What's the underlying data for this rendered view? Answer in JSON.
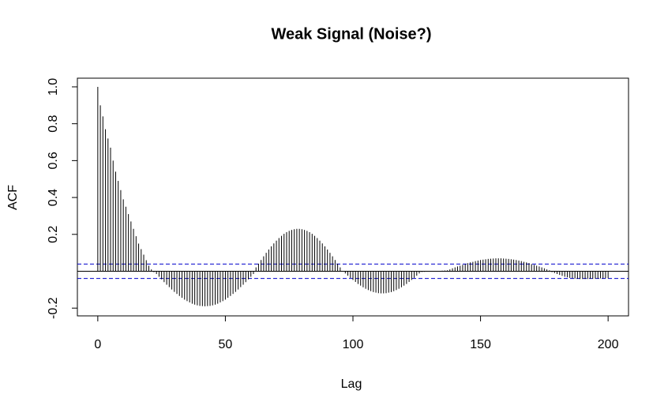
{
  "chart_data": {
    "type": "acf",
    "title": "Weak Signal (Noise?)",
    "x_label": "Lag",
    "y_label": "ACF",
    "x": [
      0,
      1,
      2,
      3,
      4,
      5,
      6,
      7,
      8,
      9,
      10,
      11,
      12,
      13,
      14,
      15,
      16,
      17,
      18,
      19,
      20,
      21,
      22,
      23,
      24,
      25,
      26,
      27,
      28,
      29,
      30,
      31,
      32,
      33,
      34,
      35,
      36,
      37,
      38,
      39,
      40,
      41,
      42,
      43,
      44,
      45,
      46,
      47,
      48,
      49,
      50,
      51,
      52,
      53,
      54,
      55,
      56,
      57,
      58,
      59,
      60,
      61,
      62,
      63,
      64,
      65,
      66,
      67,
      68,
      69,
      70,
      71,
      72,
      73,
      74,
      75,
      76,
      77,
      78,
      79,
      80,
      81,
      82,
      83,
      84,
      85,
      86,
      87,
      88,
      89,
      90,
      91,
      92,
      93,
      94,
      95,
      96,
      97,
      98,
      99,
      100,
      101,
      102,
      103,
      104,
      105,
      106,
      107,
      108,
      109,
      110,
      111,
      112,
      113,
      114,
      115,
      116,
      117,
      118,
      119,
      120,
      121,
      122,
      123,
      124,
      125,
      126,
      127,
      128,
      129,
      130,
      131,
      132,
      133,
      134,
      135,
      136,
      137,
      138,
      139,
      140,
      141,
      142,
      143,
      144,
      145,
      146,
      147,
      148,
      149,
      150,
      151,
      152,
      153,
      154,
      155,
      156,
      157,
      158,
      159,
      160,
      161,
      162,
      163,
      164,
      165,
      166,
      167,
      168,
      169,
      170,
      171,
      172,
      173,
      174,
      175,
      176,
      177,
      178,
      179,
      180,
      181,
      182,
      183,
      184,
      185,
      186,
      187,
      188,
      189,
      190,
      191,
      192,
      193,
      194,
      195,
      196,
      197,
      198,
      199,
      200
    ],
    "values": [
      1.0,
      0.9,
      0.84,
      0.77,
      0.72,
      0.67,
      0.6,
      0.54,
      0.49,
      0.44,
      0.39,
      0.35,
      0.31,
      0.27,
      0.23,
      0.19,
      0.15,
      0.12,
      0.09,
      0.06,
      0.03,
      0.01,
      -0.005,
      -0.015,
      -0.03,
      -0.044,
      -0.059,
      -0.073,
      -0.086,
      -0.099,
      -0.112,
      -0.123,
      -0.134,
      -0.144,
      -0.154,
      -0.162,
      -0.169,
      -0.176,
      -0.181,
      -0.185,
      -0.188,
      -0.189,
      -0.19,
      -0.189,
      -0.188,
      -0.185,
      -0.181,
      -0.176,
      -0.169,
      -0.162,
      -0.154,
      -0.144,
      -0.134,
      -0.123,
      -0.112,
      -0.099,
      -0.086,
      -0.073,
      -0.059,
      -0.044,
      -0.03,
      -0.015,
      0.021,
      0.041,
      0.061,
      0.081,
      0.1,
      0.118,
      0.135,
      0.151,
      0.166,
      0.18,
      0.192,
      0.203,
      0.212,
      0.219,
      0.224,
      0.228,
      0.23,
      0.23,
      0.228,
      0.224,
      0.219,
      0.212,
      0.203,
      0.192,
      0.18,
      0.166,
      0.151,
      0.135,
      0.118,
      0.1,
      0.081,
      0.061,
      0.041,
      0.021,
      0,
      -0.012,
      -0.024,
      -0.036,
      -0.047,
      -0.058,
      -0.069,
      -0.078,
      -0.087,
      -0.095,
      -0.102,
      -0.108,
      -0.113,
      -0.116,
      -0.119,
      -0.12,
      -0.12,
      -0.119,
      -0.116,
      -0.113,
      -0.108,
      -0.102,
      -0.095,
      -0.087,
      -0.078,
      -0.069,
      -0.058,
      -0.047,
      -0.036,
      -0.024,
      -0.012,
      -0.004,
      -0.003,
      -0.002,
      -0.001,
      0,
      0.001,
      0.001,
      0.002,
      0.003,
      0.004,
      0.005,
      0.01,
      0.016,
      0.021,
      0.026,
      0.03,
      0.035,
      0.039,
      0.044,
      0.048,
      0.051,
      0.055,
      0.058,
      0.061,
      0.063,
      0.065,
      0.067,
      0.068,
      0.069,
      0.07,
      0.07,
      0.07,
      0.069,
      0.068,
      0.067,
      0.065,
      0.063,
      0.061,
      0.058,
      0.055,
      0.051,
      0.048,
      0.044,
      0.039,
      0.035,
      0.03,
      0.026,
      0.021,
      0.016,
      0.01,
      0.005,
      -0.005,
      -0.01,
      -0.015,
      -0.02,
      -0.025,
      -0.03,
      -0.033,
      -0.036,
      -0.038,
      -0.04,
      -0.041,
      -0.042,
      -0.042,
      -0.042,
      -0.042,
      -0.041,
      -0.041,
      -0.04,
      -0.04,
      -0.039,
      -0.039,
      -0.038,
      -0.038
    ],
    "color": "#000000",
    "conf_limits": [
      -0.039,
      0.039
    ],
    "conf_color": "#0000cc",
    "xlim": [
      -8,
      208
    ],
    "ylim": [
      -0.242,
      1.047
    ],
    "xticks": [
      0,
      50,
      100,
      150,
      200
    ],
    "yticks": [
      -0.2,
      0.2,
      0.4,
      0.6,
      0.8,
      {
        "value": 1,
        "label": "1.0"
      }
    ]
  }
}
